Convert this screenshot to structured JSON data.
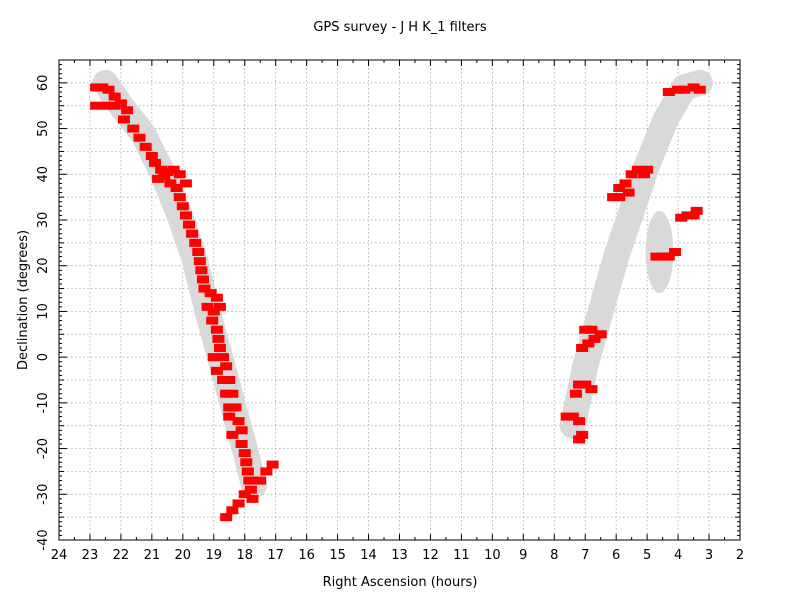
{
  "chart_data": {
    "type": "scatter",
    "title": "GPS survey - J H K_1  filters",
    "xlabel": "Right Ascension (hours)",
    "ylabel": "Declination (degrees)",
    "xlim": [
      24,
      2
    ],
    "ylim": [
      -40,
      65
    ],
    "x_ticks": [
      24,
      23,
      22,
      21,
      20,
      19,
      18,
      17,
      16,
      15,
      14,
      13,
      12,
      11,
      10,
      9,
      8,
      7,
      6,
      5,
      4,
      3,
      2
    ],
    "y_ticks": [
      -40,
      -30,
      -20,
      -10,
      0,
      10,
      20,
      30,
      40,
      50,
      60
    ],
    "grid": true,
    "colors": {
      "points": "#ff0000",
      "plane_band": "#d9d9d9",
      "grid": "#999999"
    },
    "galactic_plane_band": [
      [
        22.5,
        60
      ],
      [
        22.0,
        55
      ],
      [
        21.3,
        49
      ],
      [
        20.7,
        41
      ],
      [
        20.1,
        31
      ],
      [
        19.6,
        21
      ],
      [
        19.2,
        10
      ],
      [
        18.8,
        0
      ],
      [
        18.4,
        -10
      ],
      [
        18.0,
        -20
      ],
      [
        17.7,
        -28
      ]
    ],
    "plane_band_east": [
      [
        7.4,
        -15
      ],
      [
        7.0,
        -2
      ],
      [
        6.5,
        10
      ],
      [
        6.0,
        22
      ],
      [
        5.5,
        32
      ],
      [
        5.0,
        42
      ],
      [
        4.4,
        52
      ],
      [
        3.8,
        59
      ],
      [
        3.3,
        60
      ]
    ],
    "cygnus_blob": {
      "center": [
        4.6,
        23
      ],
      "extent": [
        0.45,
        9
      ]
    },
    "series": [
      {
        "points": [
          [
            22.8,
            59
          ],
          [
            22.6,
            59
          ],
          [
            22.4,
            58.5
          ],
          [
            22.2,
            57
          ],
          [
            22.0,
            55.5
          ],
          [
            21.8,
            54
          ],
          [
            22.8,
            55
          ],
          [
            22.5,
            55
          ],
          [
            22.2,
            55
          ],
          [
            21.9,
            52
          ],
          [
            21.6,
            50
          ],
          [
            21.4,
            48
          ],
          [
            21.2,
            46
          ],
          [
            21.0,
            44
          ],
          [
            20.9,
            42.5
          ],
          [
            20.7,
            41
          ],
          [
            20.5,
            40.5
          ],
          [
            20.3,
            41
          ],
          [
            20.1,
            40
          ],
          [
            19.9,
            38
          ],
          [
            20.8,
            39
          ],
          [
            20.6,
            39.5
          ],
          [
            20.4,
            38
          ],
          [
            20.2,
            37
          ],
          [
            20.1,
            35
          ],
          [
            20.0,
            33
          ],
          [
            19.9,
            31
          ],
          [
            19.8,
            29
          ],
          [
            19.7,
            27
          ],
          [
            19.6,
            25
          ],
          [
            19.5,
            23
          ],
          [
            19.45,
            21
          ],
          [
            19.4,
            19
          ],
          [
            19.35,
            17
          ],
          [
            19.3,
            15
          ],
          [
            19.1,
            14
          ],
          [
            18.9,
            13
          ],
          [
            19.2,
            11
          ],
          [
            19.0,
            10
          ],
          [
            18.8,
            11
          ],
          [
            19.05,
            8
          ],
          [
            18.9,
            6
          ],
          [
            18.85,
            4
          ],
          [
            18.8,
            2
          ],
          [
            18.7,
            0
          ],
          [
            19.0,
            0
          ],
          [
            18.6,
            -2
          ],
          [
            18.9,
            -3
          ],
          [
            18.7,
            -5
          ],
          [
            18.5,
            -5
          ],
          [
            18.6,
            -8
          ],
          [
            18.4,
            -8
          ],
          [
            18.5,
            -11
          ],
          [
            18.3,
            -11
          ],
          [
            18.5,
            -13
          ],
          [
            18.2,
            -14
          ],
          [
            18.4,
            -17
          ],
          [
            18.1,
            -16
          ],
          [
            18.1,
            -19
          ],
          [
            18.0,
            -21
          ],
          [
            17.95,
            -23
          ],
          [
            17.9,
            -25
          ],
          [
            17.85,
            -27
          ],
          [
            17.8,
            -29
          ],
          [
            17.75,
            -31
          ],
          [
            18.0,
            -30
          ],
          [
            17.5,
            -27
          ],
          [
            17.3,
            -25
          ],
          [
            17.1,
            -23.5
          ],
          [
            18.2,
            -32
          ],
          [
            18.4,
            -33.5
          ],
          [
            18.6,
            -35
          ],
          [
            7.6,
            -13
          ],
          [
            7.4,
            -13
          ],
          [
            7.2,
            -14
          ],
          [
            7.1,
            -17
          ],
          [
            7.2,
            -18
          ],
          [
            7.3,
            -8
          ],
          [
            7.2,
            -6
          ],
          [
            7.0,
            -6
          ],
          [
            6.8,
            -7
          ],
          [
            7.1,
            2
          ],
          [
            6.9,
            3
          ],
          [
            6.7,
            4
          ],
          [
            6.5,
            5
          ],
          [
            7.0,
            6
          ],
          [
            6.8,
            6
          ],
          [
            6.1,
            35
          ],
          [
            5.9,
            37
          ],
          [
            5.7,
            38
          ],
          [
            5.5,
            40
          ],
          [
            5.3,
            41
          ],
          [
            5.1,
            40
          ],
          [
            5.0,
            41
          ],
          [
            5.9,
            35
          ],
          [
            5.6,
            36
          ],
          [
            4.7,
            22
          ],
          [
            4.5,
            22
          ],
          [
            4.3,
            22
          ],
          [
            4.1,
            23
          ],
          [
            3.9,
            30.5
          ],
          [
            3.7,
            31
          ],
          [
            3.5,
            31
          ],
          [
            3.4,
            32
          ],
          [
            4.3,
            58
          ],
          [
            4.0,
            58.5
          ],
          [
            3.8,
            58.5
          ],
          [
            3.5,
            59
          ],
          [
            3.3,
            58.5
          ]
        ]
      }
    ]
  }
}
